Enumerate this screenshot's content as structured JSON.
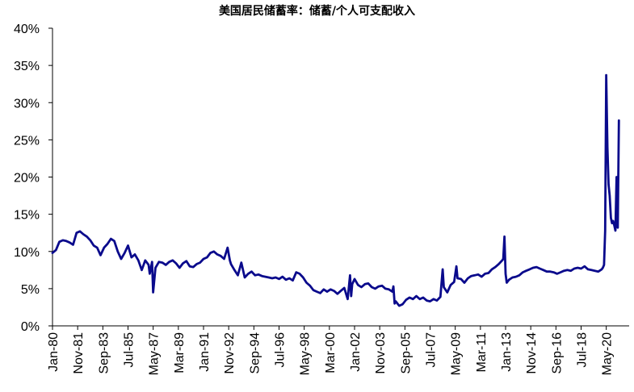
{
  "chart_data": {
    "type": "line",
    "title": "美国居民储蓄率：储蓄/个人可支配收入",
    "xlabel": "",
    "ylabel": "",
    "x_start": "Jan-80",
    "x_end": "Jan-22",
    "y_ticks": [
      "0%",
      "5%",
      "10%",
      "15%",
      "20%",
      "25%",
      "30%",
      "35%",
      "40%"
    ],
    "ylim": [
      0,
      40
    ],
    "x_ticks": [
      {
        "label": "Jan-80",
        "value": 1980.0
      },
      {
        "label": "Nov-81",
        "value": 1981.833
      },
      {
        "label": "Sep-83",
        "value": 1983.667
      },
      {
        "label": "Jul-85",
        "value": 1985.5
      },
      {
        "label": "May-87",
        "value": 1987.333
      },
      {
        "label": "Mar-89",
        "value": 1989.167
      },
      {
        "label": "Jan-91",
        "value": 1991.0
      },
      {
        "label": "Nov-92",
        "value": 1992.833
      },
      {
        "label": "Sep-94",
        "value": 1994.667
      },
      {
        "label": "Jul-96",
        "value": 1996.5
      },
      {
        "label": "May-98",
        "value": 1998.333
      },
      {
        "label": "Mar-00",
        "value": 2000.167
      },
      {
        "label": "Jan-02",
        "value": 2002.0
      },
      {
        "label": "Nov-03",
        "value": 2003.833
      },
      {
        "label": "Sep-05",
        "value": 2005.667
      },
      {
        "label": "Jul-07",
        "value": 2007.5
      },
      {
        "label": "May-09",
        "value": 2009.333
      },
      {
        "label": "Mar-11",
        "value": 2011.167
      },
      {
        "label": "Jan-13",
        "value": 2013.0
      },
      {
        "label": "Nov-14",
        "value": 2014.833
      },
      {
        "label": "Sep-16",
        "value": 2016.667
      },
      {
        "label": "Jul-18",
        "value": 2018.5
      },
      {
        "label": "May-20",
        "value": 2020.333
      }
    ],
    "grid": false,
    "legend": "none",
    "series": [
      {
        "color": "#0a0a8c",
        "x": [
          1980.0,
          1980.25,
          1980.5,
          1980.75,
          1981.0,
          1981.25,
          1981.5,
          1981.75,
          1982.0,
          1982.25,
          1982.5,
          1982.75,
          1983.0,
          1983.25,
          1983.5,
          1983.75,
          1984.0,
          1984.25,
          1984.5,
          1984.75,
          1985.0,
          1985.25,
          1985.5,
          1985.75,
          1986.0,
          1986.25,
          1986.5,
          1986.75,
          1987.0,
          1987.08,
          1987.25,
          1987.33,
          1987.5,
          1987.75,
          1988.0,
          1988.25,
          1988.5,
          1988.75,
          1989.0,
          1989.25,
          1989.5,
          1989.75,
          1990.0,
          1990.25,
          1990.5,
          1990.75,
          1991.0,
          1991.25,
          1991.5,
          1991.75,
          1992.0,
          1992.25,
          1992.5,
          1992.75,
          1992.92,
          1993.0,
          1993.25,
          1993.5,
          1993.75,
          1994.0,
          1994.25,
          1994.5,
          1994.75,
          1995.0,
          1995.25,
          1995.5,
          1995.75,
          1996.0,
          1996.25,
          1996.5,
          1996.75,
          1997.0,
          1997.25,
          1997.5,
          1997.75,
          1998.0,
          1998.25,
          1998.5,
          1998.75,
          1999.0,
          1999.25,
          1999.5,
          1999.75,
          2000.0,
          2000.25,
          2000.5,
          2000.75,
          2001.0,
          2001.25,
          2001.5,
          2001.67,
          2001.75,
          2001.83,
          2002.0,
          2002.25,
          2002.5,
          2002.75,
          2003.0,
          2003.25,
          2003.5,
          2003.75,
          2004.0,
          2004.25,
          2004.5,
          2004.75,
          2004.83,
          2004.92,
          2005.0,
          2005.25,
          2005.5,
          2005.75,
          2006.0,
          2006.25,
          2006.5,
          2006.75,
          2007.0,
          2007.25,
          2007.5,
          2007.75,
          2008.0,
          2008.25,
          2008.42,
          2008.5,
          2008.75,
          2009.0,
          2009.25,
          2009.42,
          2009.5,
          2009.75,
          2010.0,
          2010.25,
          2010.5,
          2010.75,
          2011.0,
          2011.25,
          2011.5,
          2011.75,
          2012.0,
          2012.25,
          2012.5,
          2012.75,
          2012.83,
          2012.92,
          2013.0,
          2013.08,
          2013.25,
          2013.5,
          2013.75,
          2014.0,
          2014.25,
          2014.5,
          2014.75,
          2015.0,
          2015.25,
          2015.5,
          2015.75,
          2016.0,
          2016.25,
          2016.5,
          2016.75,
          2017.0,
          2017.25,
          2017.5,
          2017.75,
          2018.0,
          2018.25,
          2018.5,
          2018.75,
          2019.0,
          2019.25,
          2019.5,
          2019.75,
          2020.0,
          2020.08,
          2020.17,
          2020.25,
          2020.33,
          2020.42,
          2020.5,
          2020.58,
          2020.67,
          2020.75,
          2020.83,
          2020.92,
          2021.0,
          2021.08,
          2021.17,
          2021.25
        ],
        "values": [
          9.8,
          10.2,
          11.3,
          11.5,
          11.4,
          11.2,
          10.9,
          12.5,
          12.7,
          12.3,
          12.0,
          11.5,
          10.8,
          10.5,
          9.5,
          10.5,
          11.0,
          11.7,
          11.4,
          10.0,
          9.0,
          9.8,
          10.8,
          9.2,
          9.6,
          8.8,
          7.5,
          8.8,
          8.2,
          7.0,
          8.6,
          4.5,
          7.8,
          8.6,
          8.5,
          8.2,
          8.6,
          8.8,
          8.4,
          7.8,
          8.4,
          8.7,
          8.0,
          7.9,
          8.3,
          8.5,
          9.0,
          9.2,
          9.8,
          10.0,
          9.6,
          9.4,
          9.0,
          10.5,
          8.8,
          8.3,
          7.5,
          6.8,
          8.5,
          6.5,
          7.0,
          7.3,
          6.8,
          6.9,
          6.7,
          6.6,
          6.5,
          6.4,
          6.5,
          6.3,
          6.6,
          6.2,
          6.4,
          6.1,
          7.2,
          7.0,
          6.5,
          5.8,
          5.4,
          4.8,
          4.6,
          4.4,
          4.9,
          4.6,
          4.9,
          4.7,
          4.3,
          4.7,
          5.1,
          3.6,
          6.8,
          4.0,
          5.6,
          6.3,
          5.5,
          5.2,
          5.6,
          5.7,
          5.2,
          5.0,
          5.3,
          5.4,
          5.0,
          4.9,
          4.6,
          5.3,
          3.0,
          3.3,
          2.7,
          2.9,
          3.5,
          3.8,
          3.6,
          4.0,
          3.6,
          3.8,
          3.4,
          3.3,
          3.6,
          3.4,
          3.9,
          7.6,
          5.2,
          4.5,
          5.5,
          5.9,
          8.0,
          6.4,
          6.3,
          5.8,
          6.4,
          6.7,
          6.8,
          6.9,
          6.6,
          7.0,
          7.1,
          7.6,
          7.9,
          8.3,
          8.8,
          9.0,
          12.0,
          7.0,
          5.8,
          6.2,
          6.5,
          6.6,
          6.8,
          7.2,
          7.4,
          7.6,
          7.8,
          7.9,
          7.7,
          7.5,
          7.3,
          7.3,
          7.2,
          7.0,
          7.2,
          7.4,
          7.5,
          7.4,
          7.7,
          7.8,
          7.7,
          8.0,
          7.6,
          7.5,
          7.4,
          7.3,
          7.6,
          7.8,
          8.2,
          12.8,
          33.7,
          24.0,
          19.0,
          17.5,
          14.5,
          13.8,
          14.1,
          13.5,
          12.8,
          20.0,
          13.2,
          27.6
        ]
      }
    ]
  }
}
